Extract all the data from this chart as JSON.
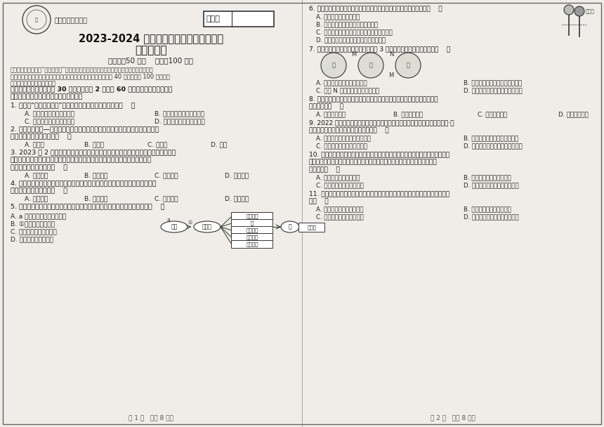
{
  "title_main": "2023-2024 学年度第二学期期中考试试卷",
  "title_sub": "八年级生物",
  "school_name": "潮南阳光实验学校",
  "seat_label": "座位号",
  "time_score": "（时间：50 分钟    分値：100 分）",
  "bg_color": "#f0ede8",
  "text_color": "#1a1a1a",
  "border_color": "#333333",
  "divider_color": "#888888",
  "page1_label": "第 1 页   （共 8 页）",
  "page2_label": "第 2 页   （共 8 页）"
}
